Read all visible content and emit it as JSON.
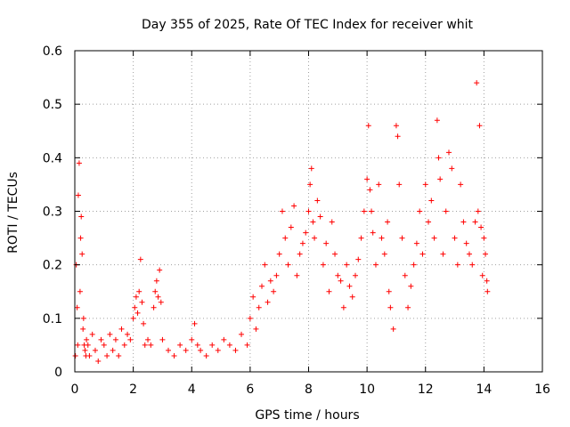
{
  "chart_data": {
    "type": "scatter",
    "title": "Day 355 of 2025, Rate Of TEC Index for receiver whit",
    "xlabel": "GPS time / hours",
    "ylabel": "ROTI / TECUs",
    "xlim": [
      0,
      16
    ],
    "ylim": [
      0,
      0.6
    ],
    "xticks": [
      0,
      2,
      4,
      6,
      8,
      10,
      12,
      14,
      16
    ],
    "yticks": [
      0,
      0.1,
      0.2,
      0.3,
      0.4,
      0.5,
      0.6
    ],
    "xtick_labels": [
      "0",
      "2",
      "4",
      "6",
      "8",
      "10",
      "12",
      "14",
      "16"
    ],
    "ytick_labels": [
      "0",
      "0.1",
      "0.2",
      "0.3",
      "0.4",
      "0.5",
      "0.6"
    ],
    "grid": true,
    "marker": "+",
    "marker_color": "#ff0000",
    "series": [
      {
        "name": "ROTI",
        "x": [
          0.02,
          0.05,
          0.08,
          0.1,
          0.12,
          0.15,
          0.18,
          0.2,
          0.22,
          0.25,
          0.28,
          0.3,
          0.32,
          0.35,
          0.38,
          0.4,
          0.45,
          0.5,
          0.6,
          0.7,
          0.8,
          0.9,
          1.0,
          1.1,
          1.2,
          1.3,
          1.4,
          1.5,
          1.6,
          1.7,
          1.8,
          1.9,
          2.0,
          2.05,
          2.1,
          2.15,
          2.2,
          2.25,
          2.3,
          2.35,
          2.4,
          2.5,
          2.6,
          2.7,
          2.75,
          2.8,
          2.85,
          2.9,
          2.95,
          3.0,
          3.2,
          3.4,
          3.6,
          3.8,
          4.0,
          4.1,
          4.2,
          4.3,
          4.5,
          4.7,
          4.9,
          5.1,
          5.3,
          5.5,
          5.7,
          5.9,
          6.0,
          6.1,
          6.2,
          6.3,
          6.4,
          6.5,
          6.6,
          6.7,
          6.8,
          6.9,
          7.0,
          7.1,
          7.2,
          7.3,
          7.4,
          7.5,
          7.6,
          7.7,
          7.8,
          7.9,
          8.0,
          8.05,
          8.1,
          8.15,
          8.2,
          8.3,
          8.4,
          8.5,
          8.6,
          8.7,
          8.8,
          8.9,
          9.0,
          9.1,
          9.2,
          9.3,
          9.4,
          9.5,
          9.6,
          9.7,
          9.8,
          9.9,
          10.0,
          10.05,
          10.1,
          10.15,
          10.2,
          10.3,
          10.4,
          10.5,
          10.6,
          10.7,
          10.75,
          10.8,
          10.9,
          11.0,
          11.05,
          11.1,
          11.2,
          11.3,
          11.4,
          11.5,
          11.6,
          11.7,
          11.8,
          11.9,
          12.0,
          12.1,
          12.2,
          12.3,
          12.4,
          12.45,
          12.5,
          12.6,
          12.7,
          12.8,
          12.9,
          13.0,
          13.1,
          13.2,
          13.3,
          13.4,
          13.5,
          13.6,
          13.7,
          13.75,
          13.8,
          13.85,
          13.9,
          13.95,
          14.0,
          14.05,
          14.1,
          14.12
        ],
        "y": [
          0.03,
          0.2,
          0.12,
          0.05,
          0.33,
          0.39,
          0.15,
          0.25,
          0.29,
          0.22,
          0.08,
          0.1,
          0.05,
          0.04,
          0.03,
          0.06,
          0.05,
          0.03,
          0.07,
          0.04,
          0.02,
          0.06,
          0.05,
          0.03,
          0.07,
          0.04,
          0.06,
          0.03,
          0.08,
          0.05,
          0.07,
          0.06,
          0.1,
          0.12,
          0.14,
          0.11,
          0.15,
          0.21,
          0.13,
          0.09,
          0.05,
          0.06,
          0.05,
          0.12,
          0.15,
          0.17,
          0.14,
          0.19,
          0.13,
          0.06,
          0.04,
          0.03,
          0.05,
          0.04,
          0.06,
          0.09,
          0.05,
          0.04,
          0.03,
          0.05,
          0.04,
          0.06,
          0.05,
          0.04,
          0.07,
          0.05,
          0.1,
          0.14,
          0.08,
          0.12,
          0.16,
          0.2,
          0.13,
          0.17,
          0.15,
          0.18,
          0.22,
          0.3,
          0.25,
          0.2,
          0.27,
          0.31,
          0.18,
          0.22,
          0.24,
          0.26,
          0.3,
          0.35,
          0.38,
          0.28,
          0.25,
          0.32,
          0.29,
          0.2,
          0.24,
          0.15,
          0.28,
          0.22,
          0.18,
          0.17,
          0.12,
          0.2,
          0.16,
          0.14,
          0.18,
          0.21,
          0.25,
          0.3,
          0.36,
          0.46,
          0.34,
          0.3,
          0.26,
          0.2,
          0.35,
          0.25,
          0.22,
          0.28,
          0.15,
          0.12,
          0.08,
          0.46,
          0.44,
          0.35,
          0.25,
          0.18,
          0.12,
          0.16,
          0.2,
          0.24,
          0.3,
          0.22,
          0.35,
          0.28,
          0.32,
          0.25,
          0.47,
          0.4,
          0.36,
          0.22,
          0.3,
          0.41,
          0.38,
          0.25,
          0.2,
          0.35,
          0.28,
          0.24,
          0.22,
          0.2,
          0.28,
          0.54,
          0.3,
          0.46,
          0.27,
          0.18,
          0.25,
          0.22,
          0.17,
          0.15
        ]
      }
    ]
  }
}
